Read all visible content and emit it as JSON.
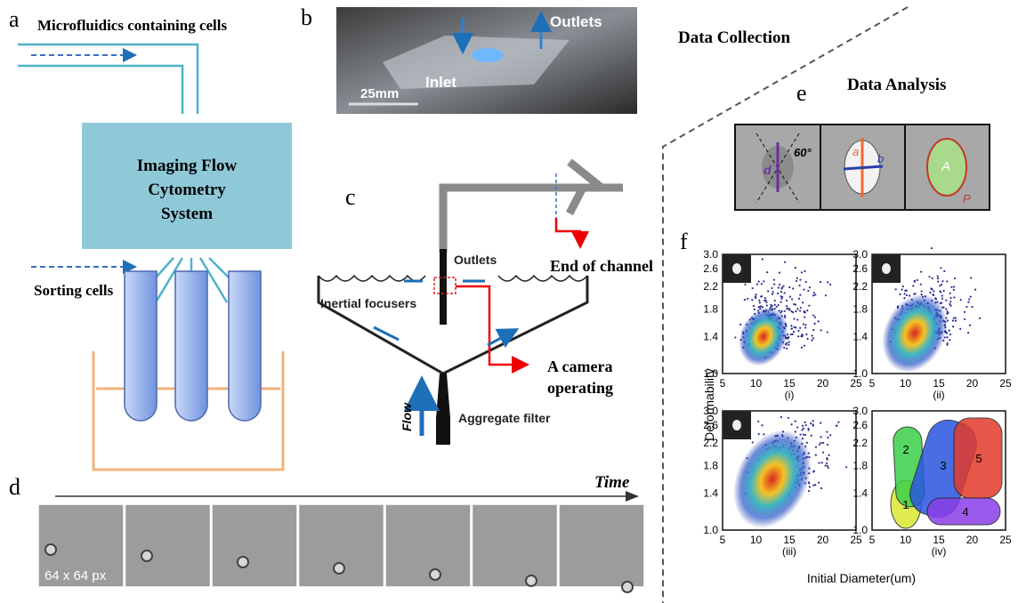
{
  "sections": {
    "collection": "Data Collection",
    "analysis": "Data Analysis"
  },
  "panel_a": {
    "label": "a",
    "title": "Microfluidics containing cells",
    "box": [
      "Imaging Flow",
      "Cytometry",
      "System"
    ],
    "sorting": "Sorting cells"
  },
  "panel_b": {
    "label": "b",
    "outlets": "Outlets",
    "inlet": "Inlet",
    "scale": "25mm"
  },
  "panel_c": {
    "label": "c",
    "outlets": "Outlets",
    "end": "End of channel",
    "focusers": "Inertial focusers",
    "camera": [
      "A camera",
      "operating"
    ],
    "filter": "Aggregate filter",
    "flow": "Flow"
  },
  "panel_d": {
    "label": "d",
    "time": "Time",
    "size": "64 x 64 px"
  },
  "panel_e": {
    "label": "e",
    "d": "d",
    "angle": "60°",
    "a": "a",
    "b": "b",
    "A": "A",
    "P": "P"
  },
  "panel_f": {
    "label": "f",
    "ylabel": "Deformability",
    "xlabel": "Initial Diameter(um)",
    "yticks": [
      "3.0",
      "2.6",
      "2.2",
      "1.8",
      "1.4",
      "1.0"
    ],
    "xticks": [
      "5",
      "10",
      "15",
      "20",
      "25"
    ],
    "subplots": [
      "(i)",
      "(ii)",
      "(iii)",
      "(iv)"
    ],
    "clusters": [
      "1",
      "2",
      "3",
      "4",
      "5"
    ]
  }
}
